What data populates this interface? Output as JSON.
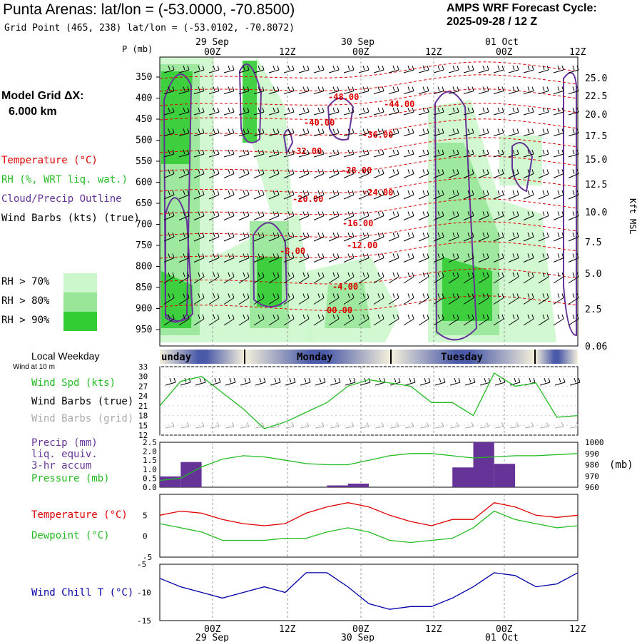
{
  "header": {
    "title": "Punta Arenas:  lat/lon = (-53.0000, -70.8500)",
    "grid_point": "Grid Point (465, 238) lat/lon = (-53.0102, -70.8072)",
    "forecast_label": "AMPS WRF Forecast Cycle:",
    "forecast_cycle": "2025-09-28 / 12  Z"
  },
  "time_axis": {
    "hours": [
      "00Z",
      "12Z",
      "00Z",
      "12Z",
      "00Z",
      "12Z"
    ],
    "dates": [
      "29 Sep",
      "30 Sep",
      "01 Oct"
    ]
  },
  "legend": {
    "model_grid": "Model Grid ΔX:",
    "model_grid_value": "6.000 km",
    "temperature": "Temperature (°C)",
    "rh": "RH (%, WRT liq. wat.)",
    "cloud": "Cloud/Precip Outline",
    "wind": "Wind Barbs (kts) (true)",
    "rh70": "RH > 70%",
    "rh80": "RH > 80%",
    "rh90": "RH > 90%",
    "p_label": "P (mb)",
    "kft_label": "Kft MSL"
  },
  "colors": {
    "temperature": "#e00000",
    "rh70": "#ccf7cc",
    "rh80": "#99e699",
    "rh90": "#33cc33",
    "cloud": "#663399",
    "wind_grid": "#aaaaaa",
    "precip": "#663399",
    "pressure": "#22bb22",
    "dewpoint": "#22bb22",
    "windchill": "#0000aa",
    "day_band": "#4a5aa8"
  },
  "chart_data": [
    {
      "type": "heatmap",
      "title": "Vertical cross-section",
      "y_left": [
        350,
        400,
        450,
        500,
        550,
        600,
        650,
        700,
        750,
        800,
        850,
        900,
        950
      ],
      "y_right": [
        "25.0",
        "22.5",
        "20.0",
        "17.5",
        "15.0",
        "12.5",
        "10.0",
        "7.5",
        "5.0",
        "2.5",
        "0.06"
      ],
      "y_right_label": "Kft MSL",
      "contour_labels": [
        "-48.00",
        "-44.00",
        "-40.00",
        "-36.00",
        "-32.00",
        "-28.00",
        "-24.00",
        "-20.00",
        "-16.00",
        "-12.00",
        "-8.00",
        "-4.00",
        "00.00"
      ]
    },
    {
      "type": "line",
      "title": "Wind Spd (kts)",
      "day_labels": [
        "unday",
        "Monday",
        "Tuesday"
      ],
      "weekday_title": "Local Weekday",
      "wind_note": "Wind at 10 m",
      "labels": [
        "Wind Spd (kts)",
        "Wind Barbs (true)",
        "Wind Barbs (grid)"
      ],
      "yticks": [
        "33",
        "30",
        "27",
        "24",
        "21",
        "18",
        "15",
        "12"
      ],
      "ylim": [
        12,
        33
      ],
      "x": [
        0,
        3,
        6,
        9,
        12,
        15,
        18,
        21,
        24,
        27,
        30,
        33,
        36,
        39,
        42,
        45,
        48,
        51,
        54,
        57,
        60
      ],
      "values": [
        21,
        28.5,
        30,
        25,
        20,
        14,
        16,
        19,
        22,
        27,
        29,
        28,
        27,
        22,
        22,
        18,
        31,
        27,
        28,
        17.5,
        18
      ]
    },
    {
      "type": "bar",
      "title": "Precip (mm)",
      "labels": [
        "Precip (mm)",
        "liq. equiv.",
        "3-hr accum",
        "Pressure (mb)"
      ],
      "y_left": [
        "2.5",
        "2.0",
        "1.5",
        "1.0",
        "0.5",
        "0.0"
      ],
      "y_right": [
        "1000",
        "990",
        "980",
        "970",
        "960"
      ],
      "y_right_unit": "(mb)",
      "ylim": [
        0,
        2.5
      ],
      "precip_x": [
        0,
        3,
        6,
        9,
        12,
        15,
        18,
        21,
        24,
        27,
        30,
        33,
        36,
        39,
        42,
        45,
        48,
        51,
        54,
        57,
        60
      ],
      "precip": [
        0.6,
        1.4,
        0,
        0,
        0,
        0,
        0,
        0,
        0.1,
        0.2,
        0,
        0,
        0,
        0,
        1.1,
        2.5,
        1.3,
        0,
        0,
        0,
        0
      ],
      "pressure_ylim": [
        960,
        1000
      ],
      "pressure": [
        966,
        968,
        978,
        985,
        988,
        987,
        984,
        981,
        980,
        980,
        984,
        988,
        990,
        990,
        988,
        986,
        987,
        988,
        988,
        989,
        990
      ]
    },
    {
      "type": "line",
      "title": "Temperature / Dewpoint",
      "labels": [
        "Temperature (°C)",
        "Dewpoint (°C)"
      ],
      "yticks": [
        "5",
        "0",
        "-5"
      ],
      "ylim": [
        -5,
        10
      ],
      "x": [
        0,
        3,
        6,
        9,
        12,
        15,
        18,
        21,
        24,
        27,
        30,
        33,
        36,
        39,
        42,
        45,
        48,
        51,
        54,
        57,
        60
      ],
      "temperature": [
        5,
        6,
        5.5,
        4,
        3,
        2.5,
        3,
        5.5,
        7,
        8,
        7,
        5,
        3.5,
        2.5,
        4,
        4,
        8,
        7,
        5,
        4.5,
        5
      ],
      "dewpoint": [
        3,
        2,
        1,
        -1,
        -1,
        -1,
        -0.5,
        -0.5,
        1,
        2,
        1,
        -1,
        -1.5,
        -1,
        -0.5,
        2,
        6,
        4,
        3,
        2,
        2.5
      ]
    },
    {
      "type": "line",
      "title": "Wind Chill T (°C)",
      "labels": [
        "Wind Chill T (°C)"
      ],
      "yticks": [
        "-5",
        "-10",
        "-15"
      ],
      "ylim": [
        -15,
        -5
      ],
      "x": [
        0,
        3,
        6,
        9,
        12,
        15,
        18,
        21,
        24,
        27,
        30,
        33,
        36,
        39,
        42,
        45,
        48,
        51,
        54,
        57,
        60
      ],
      "values": [
        -7.5,
        -9,
        -10,
        -11,
        -10,
        -9,
        -10,
        -6.5,
        -6.5,
        -9,
        -12,
        -13,
        -12.5,
        -12.5,
        -11,
        -9,
        -6.5,
        -7,
        -9,
        -8.5,
        -6.5
      ]
    }
  ]
}
